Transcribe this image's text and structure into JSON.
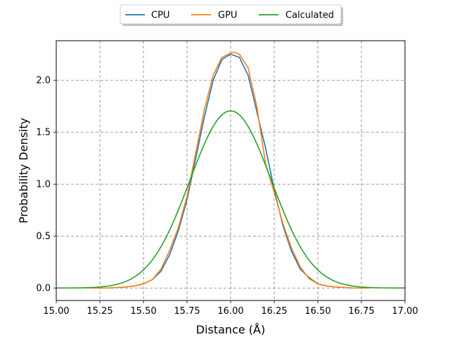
{
  "chart_data": {
    "type": "line",
    "xlabel": "Distance (Å)",
    "ylabel": "Probability Density",
    "xlim": [
      15.0,
      17.0
    ],
    "ylim": [
      -0.12,
      2.38
    ],
    "xticks": [
      15.0,
      15.25,
      15.5,
      15.75,
      16.0,
      16.25,
      16.5,
      16.75,
      17.0
    ],
    "xtick_labels": [
      "15.00",
      "15.25",
      "15.50",
      "15.75",
      "16.00",
      "16.25",
      "16.50",
      "16.75",
      "17.00"
    ],
    "yticks": [
      0.0,
      0.5,
      1.0,
      1.5,
      2.0
    ],
    "ytick_labels": [
      "0.0",
      "0.5",
      "1.0",
      "1.5",
      "2.0"
    ],
    "grid": true,
    "legend_position": "top-center",
    "series": [
      {
        "name": "CPU",
        "color": "#1f77b4",
        "x": [
          15.17,
          15.3,
          15.4,
          15.45,
          15.5,
          15.55,
          15.6,
          15.65,
          15.7,
          15.75,
          15.8,
          15.85,
          15.9,
          15.95,
          16.0,
          16.05,
          16.1,
          16.15,
          16.2,
          16.25,
          16.3,
          16.35,
          16.4,
          16.45,
          16.5,
          16.55,
          16.6,
          16.7,
          16.8
        ],
        "y": [
          0.0,
          0.0,
          0.01,
          0.02,
          0.04,
          0.08,
          0.16,
          0.32,
          0.55,
          0.85,
          1.25,
          1.65,
          2.0,
          2.2,
          2.25,
          2.22,
          2.05,
          1.7,
          1.35,
          0.95,
          0.6,
          0.35,
          0.18,
          0.1,
          0.04,
          0.02,
          0.01,
          0.0,
          0.0
        ]
      },
      {
        "name": "GPU",
        "color": "#ff7f0e",
        "x": [
          15.17,
          15.3,
          15.4,
          15.45,
          15.5,
          15.55,
          15.6,
          15.65,
          15.7,
          15.75,
          15.8,
          15.85,
          15.9,
          15.95,
          16.0,
          16.02,
          16.05,
          16.1,
          16.15,
          16.2,
          16.25,
          16.3,
          16.35,
          16.4,
          16.45,
          16.5,
          16.55,
          16.6,
          16.7,
          16.8
        ],
        "y": [
          0.0,
          0.0,
          0.01,
          0.02,
          0.04,
          0.08,
          0.18,
          0.36,
          0.58,
          0.88,
          1.3,
          1.72,
          2.05,
          2.22,
          2.26,
          2.27,
          2.25,
          2.12,
          1.75,
          1.2,
          0.92,
          0.62,
          0.38,
          0.2,
          0.09,
          0.04,
          0.02,
          0.01,
          0.0,
          0.0
        ]
      },
      {
        "name": "Calculated",
        "color": "#2ca02c",
        "gaussian": {
          "mu": 16.0,
          "sigma": 0.234,
          "peak": 1.705
        },
        "x_range": [
          15.0,
          17.0
        ]
      }
    ]
  }
}
